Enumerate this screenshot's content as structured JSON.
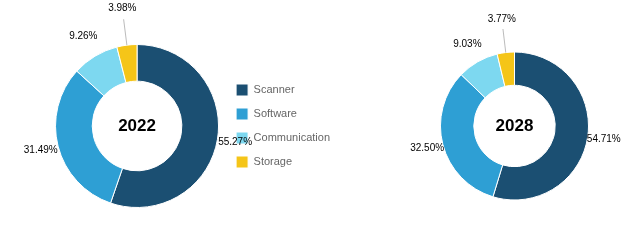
{
  "chart_data": [
    {
      "type": "doughnut",
      "annotation": "2022",
      "categories": [
        "Scanner",
        "Software",
        "Communication",
        "Storage"
      ],
      "values": [
        55.27,
        31.49,
        9.26,
        3.98
      ],
      "value_labels": [
        "55.27%",
        "31.49%",
        "9.26%",
        "3.98%"
      ],
      "colors": [
        "#1b4f72",
        "#2e9fd4",
        "#7dd8f0",
        "#f5c518"
      ],
      "data_labels": true,
      "legend": "right"
    },
    {
      "type": "doughnut",
      "annotation": "2028",
      "categories": [
        "Scanner",
        "Software",
        "Communication",
        "Storage"
      ],
      "values": [
        54.71,
        32.5,
        9.03,
        3.77
      ],
      "value_labels": [
        "54.71%",
        "32.50%",
        "9.03%",
        "3.77%"
      ],
      "colors": [
        "#1b4f72",
        "#2e9fd4",
        "#7dd8f0",
        "#f5c518"
      ],
      "data_labels": true
    }
  ]
}
